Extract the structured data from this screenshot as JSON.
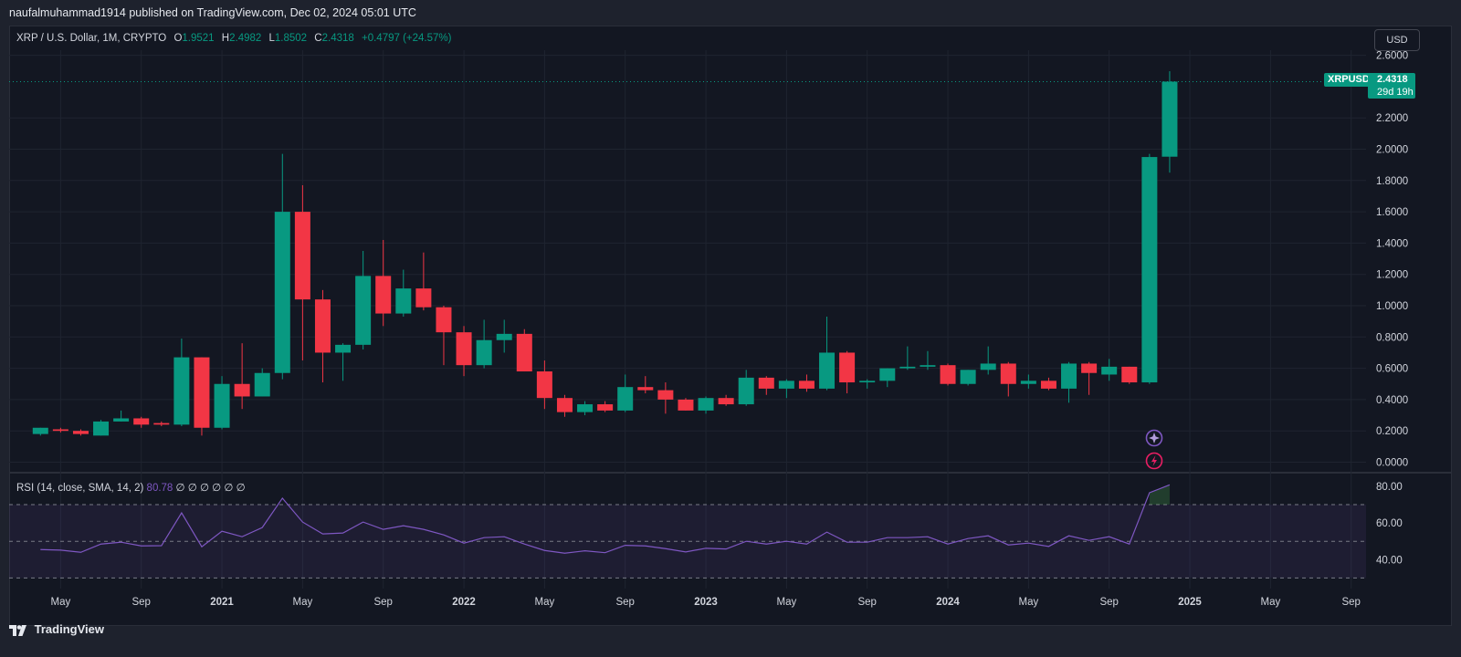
{
  "header": {
    "published_text": "naufalmuhammad1914 published on TradingView.com, Dec 02, 2024 05:01 UTC"
  },
  "legend": {
    "symbol_text": "XRP / U.S. Dollar, 1M, CRYPTO",
    "open_key": "O",
    "open": "1.9521",
    "high_key": "H",
    "high": "2.4982",
    "low_key": "L",
    "low": "1.8502",
    "close_key": "C",
    "close": "2.4318",
    "change": "+0.4797 (+24.57%)"
  },
  "currency_button": "USD",
  "last_price": {
    "symbol": "XRPUSD",
    "price": "2.4318",
    "countdown": "29d 19h"
  },
  "price_axis_labels": [
    "2.6000",
    "2.2000",
    "2.0000",
    "1.8000",
    "1.6000",
    "1.4000",
    "1.2000",
    "1.0000",
    "0.8000",
    "0.6000",
    "0.4000",
    "0.2000",
    "0.0000"
  ],
  "rsi": {
    "legend_text": "RSI (14, close, SMA, 14, 2)",
    "value": "80.78",
    "placeholders": "∅ ∅ ∅ ∅ ∅ ∅",
    "axis_labels": [
      "80.00",
      "60.00",
      "40.00"
    ]
  },
  "time_axis_labels": [
    "May",
    "Sep",
    "2021",
    "May",
    "Sep",
    "2022",
    "May",
    "Sep",
    "2023",
    "May",
    "Sep",
    "2024",
    "May",
    "Sep",
    "2025",
    "May",
    "Sep"
  ],
  "footer": {
    "brand": "TradingView"
  },
  "colors": {
    "up": "#089981",
    "down": "#f23645",
    "rsi": "#7e57c2",
    "background": "#131722"
  },
  "icons": [
    "sparkle-icon",
    "lightning-icon",
    "tradingview-logo-icon"
  ],
  "chart_data": {
    "type": "candlestick",
    "symbol": "XRPUSD",
    "interval": "1M",
    "candles": [
      {
        "date": "2020-04",
        "o": 0.18,
        "h": 0.22,
        "l": 0.17,
        "c": 0.22
      },
      {
        "date": "2020-05",
        "o": 0.21,
        "h": 0.22,
        "l": 0.19,
        "c": 0.2
      },
      {
        "date": "2020-06",
        "o": 0.2,
        "h": 0.21,
        "l": 0.17,
        "c": 0.18
      },
      {
        "date": "2020-07",
        "o": 0.17,
        "h": 0.27,
        "l": 0.17,
        "c": 0.26
      },
      {
        "date": "2020-08",
        "o": 0.26,
        "h": 0.33,
        "l": 0.26,
        "c": 0.28
      },
      {
        "date": "2020-09",
        "o": 0.28,
        "h": 0.29,
        "l": 0.22,
        "c": 0.24
      },
      {
        "date": "2020-10",
        "o": 0.25,
        "h": 0.26,
        "l": 0.23,
        "c": 0.24
      },
      {
        "date": "2020-11",
        "o": 0.24,
        "h": 0.79,
        "l": 0.23,
        "c": 0.67
      },
      {
        "date": "2020-12",
        "o": 0.67,
        "h": 0.67,
        "l": 0.17,
        "c": 0.22
      },
      {
        "date": "2021-01",
        "o": 0.22,
        "h": 0.55,
        "l": 0.21,
        "c": 0.5
      },
      {
        "date": "2021-02",
        "o": 0.5,
        "h": 0.76,
        "l": 0.34,
        "c": 0.42
      },
      {
        "date": "2021-03",
        "o": 0.42,
        "h": 0.6,
        "l": 0.42,
        "c": 0.57
      },
      {
        "date": "2021-04",
        "o": 0.57,
        "h": 1.97,
        "l": 0.53,
        "c": 1.6
      },
      {
        "date": "2021-05",
        "o": 1.6,
        "h": 1.77,
        "l": 0.65,
        "c": 1.04
      },
      {
        "date": "2021-06",
        "o": 1.04,
        "h": 1.1,
        "l": 0.51,
        "c": 0.7
      },
      {
        "date": "2021-07",
        "o": 0.7,
        "h": 0.76,
        "l": 0.52,
        "c": 0.75
      },
      {
        "date": "2021-08",
        "o": 0.75,
        "h": 1.35,
        "l": 0.72,
        "c": 1.19
      },
      {
        "date": "2021-09",
        "o": 1.19,
        "h": 1.42,
        "l": 0.87,
        "c": 0.95
      },
      {
        "date": "2021-10",
        "o": 0.95,
        "h": 1.23,
        "l": 0.93,
        "c": 1.11
      },
      {
        "date": "2021-11",
        "o": 1.11,
        "h": 1.34,
        "l": 0.97,
        "c": 0.99
      },
      {
        "date": "2021-12",
        "o": 0.99,
        "h": 1.0,
        "l": 0.62,
        "c": 0.83
      },
      {
        "date": "2022-01",
        "o": 0.83,
        "h": 0.87,
        "l": 0.55,
        "c": 0.62
      },
      {
        "date": "2022-02",
        "o": 0.62,
        "h": 0.91,
        "l": 0.6,
        "c": 0.78
      },
      {
        "date": "2022-03",
        "o": 0.78,
        "h": 0.91,
        "l": 0.7,
        "c": 0.82
      },
      {
        "date": "2022-04",
        "o": 0.82,
        "h": 0.85,
        "l": 0.58,
        "c": 0.58
      },
      {
        "date": "2022-05",
        "o": 0.58,
        "h": 0.65,
        "l": 0.34,
        "c": 0.41
      },
      {
        "date": "2022-06",
        "o": 0.41,
        "h": 0.43,
        "l": 0.29,
        "c": 0.32
      },
      {
        "date": "2022-07",
        "o": 0.32,
        "h": 0.39,
        "l": 0.3,
        "c": 0.37
      },
      {
        "date": "2022-08",
        "o": 0.37,
        "h": 0.39,
        "l": 0.32,
        "c": 0.33
      },
      {
        "date": "2022-09",
        "o": 0.33,
        "h": 0.56,
        "l": 0.32,
        "c": 0.48
      },
      {
        "date": "2022-10",
        "o": 0.48,
        "h": 0.55,
        "l": 0.44,
        "c": 0.46
      },
      {
        "date": "2022-11",
        "o": 0.46,
        "h": 0.51,
        "l": 0.31,
        "c": 0.4
      },
      {
        "date": "2022-12",
        "o": 0.4,
        "h": 0.41,
        "l": 0.33,
        "c": 0.33
      },
      {
        "date": "2023-01",
        "o": 0.33,
        "h": 0.42,
        "l": 0.31,
        "c": 0.41
      },
      {
        "date": "2023-02",
        "o": 0.41,
        "h": 0.43,
        "l": 0.36,
        "c": 0.37
      },
      {
        "date": "2023-03",
        "o": 0.37,
        "h": 0.59,
        "l": 0.36,
        "c": 0.54
      },
      {
        "date": "2023-04",
        "o": 0.54,
        "h": 0.55,
        "l": 0.43,
        "c": 0.47
      },
      {
        "date": "2023-05",
        "o": 0.47,
        "h": 0.53,
        "l": 0.41,
        "c": 0.52
      },
      {
        "date": "2023-06",
        "o": 0.52,
        "h": 0.56,
        "l": 0.45,
        "c": 0.47
      },
      {
        "date": "2023-07",
        "o": 0.47,
        "h": 0.93,
        "l": 0.46,
        "c": 0.7
      },
      {
        "date": "2023-08",
        "o": 0.7,
        "h": 0.71,
        "l": 0.44,
        "c": 0.51
      },
      {
        "date": "2023-09",
        "o": 0.51,
        "h": 0.53,
        "l": 0.47,
        "c": 0.52
      },
      {
        "date": "2023-10",
        "o": 0.52,
        "h": 0.6,
        "l": 0.48,
        "c": 0.6
      },
      {
        "date": "2023-11",
        "o": 0.6,
        "h": 0.74,
        "l": 0.59,
        "c": 0.61
      },
      {
        "date": "2023-12",
        "o": 0.61,
        "h": 0.71,
        "l": 0.59,
        "c": 0.62
      },
      {
        "date": "2024-01",
        "o": 0.62,
        "h": 0.63,
        "l": 0.49,
        "c": 0.5
      },
      {
        "date": "2024-02",
        "o": 0.5,
        "h": 0.59,
        "l": 0.49,
        "c": 0.59
      },
      {
        "date": "2024-03",
        "o": 0.59,
        "h": 0.74,
        "l": 0.56,
        "c": 0.63
      },
      {
        "date": "2024-04",
        "o": 0.63,
        "h": 0.64,
        "l": 0.42,
        "c": 0.5
      },
      {
        "date": "2024-05",
        "o": 0.5,
        "h": 0.56,
        "l": 0.47,
        "c": 0.52
      },
      {
        "date": "2024-06",
        "o": 0.52,
        "h": 0.54,
        "l": 0.46,
        "c": 0.47
      },
      {
        "date": "2024-07",
        "o": 0.47,
        "h": 0.64,
        "l": 0.38,
        "c": 0.63
      },
      {
        "date": "2024-08",
        "o": 0.63,
        "h": 0.64,
        "l": 0.43,
        "c": 0.57
      },
      {
        "date": "2024-09",
        "o": 0.56,
        "h": 0.66,
        "l": 0.52,
        "c": 0.61
      },
      {
        "date": "2024-10",
        "o": 0.61,
        "h": 0.61,
        "l": 0.5,
        "c": 0.51
      },
      {
        "date": "2024-11",
        "o": 0.51,
        "h": 1.97,
        "l": 0.5,
        "c": 1.95
      },
      {
        "date": "2024-12",
        "o": 1.9521,
        "h": 2.4982,
        "l": 1.8502,
        "c": 2.4318
      }
    ],
    "rsi_values": [
      45.5,
      45.2,
      44.0,
      48.5,
      49.5,
      47.5,
      47.6,
      65.5,
      47.0,
      55.5,
      52.5,
      57.5,
      73.5,
      60.5,
      54.0,
      54.5,
      60.5,
      56.5,
      58.5,
      56.5,
      53.5,
      49.0,
      52.0,
      52.5,
      48.5,
      45.0,
      43.5,
      44.8,
      43.8,
      47.8,
      47.5,
      46.0,
      44.2,
      46.2,
      45.8,
      50.0,
      48.5,
      50.0,
      48.5,
      55.0,
      49.5,
      49.5,
      52.0,
      52.0,
      52.5,
      48.5,
      51.5,
      53.0,
      48.0,
      49.0,
      47.2,
      53.0,
      50.5,
      52.5,
      48.5,
      76.5,
      80.78
    ],
    "rsi_bands": [
      30,
      50,
      70
    ],
    "y_range": [
      0,
      2.6
    ],
    "rsi_range": [
      30,
      80
    ],
    "legend_placement": "top-left"
  }
}
